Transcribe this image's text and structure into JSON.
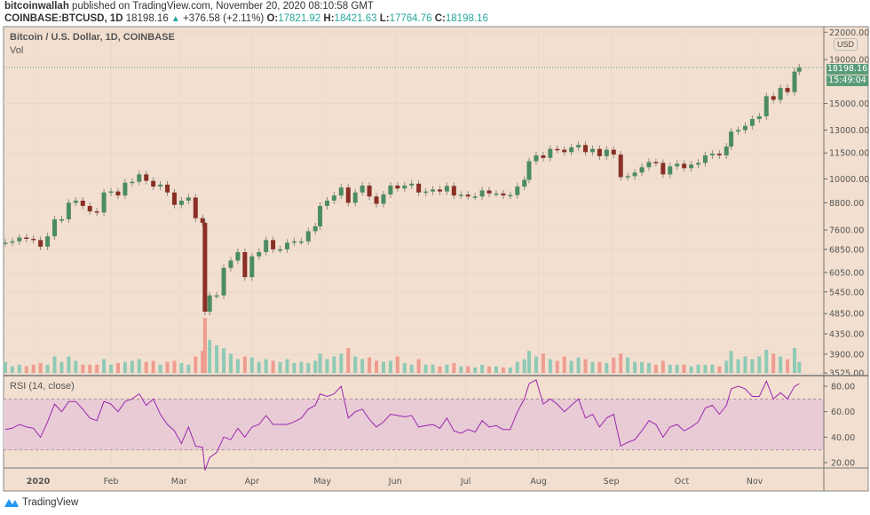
{
  "header": {
    "author": "bitcoinwallah",
    "published": "published on TradingView.com, November 20, 2020 08:10:58 GMT",
    "symbol": "COINBASE:BTCUSD, 1D",
    "last": "18198.16",
    "change": "+376.58 (+2.11%)",
    "o_label": "O:",
    "o": "17821.92",
    "h_label": "H:",
    "h": "18421.63",
    "l_label": "L:",
    "l": "17764.76",
    "c_label": "C:",
    "c": "18198.16"
  },
  "legend": {
    "title": "Bitcoin / U.S. Dollar, 1D, COINBASE",
    "vol": "Vol",
    "rsi": "RSI (14, close)"
  },
  "axis": {
    "currency": "USD",
    "last_price_label": "18198.16",
    "countdown": "15:49:04"
  },
  "footer": {
    "brand": "TradingView"
  },
  "colors": {
    "background": "#f2dfcf",
    "up": "#4c8c62",
    "down": "#8a2f25",
    "vol_up": "#8ecab6",
    "vol_down": "#ef9c90",
    "rsi": "#9c27b0",
    "rsi_band": "#e8cbd5",
    "label": "#5a9c78"
  },
  "chart_data": [
    {
      "type": "candlestick",
      "title": "Bitcoin / U.S. Dollar, 1D, COINBASE",
      "scale": "log",
      "grid": true,
      "ylim": [
        3525,
        22000
      ],
      "y_ticks": [
        "22000.00",
        "19000.00",
        "15000.00",
        "13000.00",
        "11500.00",
        "10000.00",
        "8800.00",
        "7600.00",
        "6850.00",
        "6050.00",
        "5450.00",
        "4850.00",
        "4350.00",
        "3900.00",
        "3525.00"
      ],
      "x_ticks": [
        [
          "2020",
          "2020-01-01"
        ],
        [
          "Feb",
          "2020-02-01"
        ],
        [
          "Mar",
          "2020-03-01"
        ],
        [
          "Apr",
          "2020-04-01"
        ],
        [
          "May",
          "2020-05-01"
        ],
        [
          "Jun",
          "2020-06-01"
        ],
        [
          "Jul",
          "2020-07-01"
        ],
        [
          "Aug",
          "2020-08-01"
        ],
        [
          "Sep",
          "2020-09-01"
        ],
        [
          "Oct",
          "2020-10-01"
        ],
        [
          "Nov",
          "2020-11-01"
        ]
      ],
      "columns": [
        "date",
        "close",
        "rsi",
        "volume_relative"
      ],
      "rows": [
        [
          "2019-12-18",
          7100,
          46,
          0.2
        ],
        [
          "2019-12-21",
          7150,
          47,
          0.12
        ],
        [
          "2019-12-24",
          7300,
          50,
          0.15
        ],
        [
          "2019-12-27",
          7250,
          48,
          0.12
        ],
        [
          "2019-12-30",
          7200,
          47,
          0.15
        ],
        [
          "2020-01-02",
          6950,
          40,
          0.18
        ],
        [
          "2020-01-05",
          7350,
          52,
          0.15
        ],
        [
          "2020-01-08",
          8050,
          66,
          0.3
        ],
        [
          "2020-01-11",
          8050,
          60,
          0.2
        ],
        [
          "2020-01-14",
          8800,
          68,
          0.3
        ],
        [
          "2020-01-17",
          8900,
          68,
          0.22
        ],
        [
          "2020-01-20",
          8650,
          62,
          0.15
        ],
        [
          "2020-01-23",
          8400,
          55,
          0.15
        ],
        [
          "2020-01-26",
          8350,
          53,
          0.15
        ],
        [
          "2020-01-29",
          9300,
          68,
          0.25
        ],
        [
          "2020-02-01",
          9350,
          66,
          0.15
        ],
        [
          "2020-02-04",
          9150,
          60,
          0.18
        ],
        [
          "2020-02-07",
          9800,
          68,
          0.2
        ],
        [
          "2020-02-10",
          9850,
          70,
          0.22
        ],
        [
          "2020-02-13",
          10250,
          74,
          0.25
        ],
        [
          "2020-02-16",
          9900,
          65,
          0.2
        ],
        [
          "2020-02-19",
          9600,
          70,
          0.22
        ],
        [
          "2020-02-22",
          9700,
          58,
          0.15
        ],
        [
          "2020-02-25",
          9300,
          50,
          0.2
        ],
        [
          "2020-02-28",
          8700,
          45,
          0.22
        ],
        [
          "2020-03-02",
          8900,
          35,
          0.18
        ],
        [
          "2020-03-05",
          9050,
          48,
          0.15
        ],
        [
          "2020-03-08",
          8100,
          33,
          0.3
        ],
        [
          "2020-03-11",
          7900,
          32,
          0.4
        ],
        [
          "2020-03-12",
          4900,
          14,
          1.0
        ],
        [
          "2020-03-14",
          5350,
          24,
          0.6
        ],
        [
          "2020-03-17",
          5350,
          28,
          0.5
        ],
        [
          "2020-03-20",
          6200,
          40,
          0.45
        ],
        [
          "2020-03-23",
          6450,
          38,
          0.35
        ],
        [
          "2020-03-26",
          6750,
          47,
          0.25
        ],
        [
          "2020-03-29",
          5900,
          40,
          0.3
        ],
        [
          "2020-04-01",
          6600,
          48,
          0.28
        ],
        [
          "2020-04-04",
          6750,
          50,
          0.2
        ],
        [
          "2020-04-07",
          7200,
          57,
          0.25
        ],
        [
          "2020-04-10",
          6850,
          50,
          0.22
        ],
        [
          "2020-04-13",
          6850,
          50,
          0.2
        ],
        [
          "2020-04-16",
          7100,
          50,
          0.25
        ],
        [
          "2020-04-19",
          7150,
          52,
          0.18
        ],
        [
          "2020-04-22",
          7150,
          55,
          0.2
        ],
        [
          "2020-04-25",
          7550,
          62,
          0.18
        ],
        [
          "2020-04-28",
          7750,
          65,
          0.22
        ],
        [
          "2020-04-30",
          8650,
          74,
          0.35
        ],
        [
          "2020-05-03",
          8900,
          72,
          0.25
        ],
        [
          "2020-05-06",
          9150,
          74,
          0.3
        ],
        [
          "2020-05-09",
          9550,
          80,
          0.35
        ],
        [
          "2020-05-12",
          8800,
          55,
          0.45
        ],
        [
          "2020-05-15",
          9300,
          60,
          0.3
        ],
        [
          "2020-05-18",
          9650,
          62,
          0.25
        ],
        [
          "2020-05-21",
          9100,
          54,
          0.28
        ],
        [
          "2020-05-24",
          8750,
          48,
          0.22
        ],
        [
          "2020-05-27",
          9200,
          52,
          0.2
        ],
        [
          "2020-05-30",
          9650,
          58,
          0.22
        ],
        [
          "2020-06-02",
          9500,
          57,
          0.3
        ],
        [
          "2020-06-05",
          9650,
          56,
          0.18
        ],
        [
          "2020-06-08",
          9750,
          57,
          0.15
        ],
        [
          "2020-06-11",
          9300,
          48,
          0.25
        ],
        [
          "2020-06-14",
          9350,
          49,
          0.15
        ],
        [
          "2020-06-17",
          9450,
          50,
          0.15
        ],
        [
          "2020-06-20",
          9350,
          47,
          0.12
        ],
        [
          "2020-06-23",
          9630,
          55,
          0.15
        ],
        [
          "2020-06-26",
          9150,
          45,
          0.18
        ],
        [
          "2020-06-29",
          9190,
          43,
          0.12
        ],
        [
          "2020-07-02",
          9100,
          46,
          0.12
        ],
        [
          "2020-07-05",
          9100,
          44,
          0.1
        ],
        [
          "2020-07-08",
          9400,
          53,
          0.15
        ],
        [
          "2020-07-11",
          9250,
          48,
          0.12
        ],
        [
          "2020-07-14",
          9250,
          49,
          0.12
        ],
        [
          "2020-07-17",
          9150,
          46,
          0.1
        ],
        [
          "2020-07-20",
          9170,
          46,
          0.1
        ],
        [
          "2020-07-23",
          9600,
          60,
          0.2
        ],
        [
          "2020-07-26",
          9950,
          70,
          0.25
        ],
        [
          "2020-07-28",
          11000,
          82,
          0.4
        ],
        [
          "2020-07-31",
          11350,
          85,
          0.3
        ],
        [
          "2020-08-03",
          11200,
          66,
          0.35
        ],
        [
          "2020-08-06",
          11750,
          70,
          0.25
        ],
        [
          "2020-08-09",
          11700,
          66,
          0.22
        ],
        [
          "2020-08-12",
          11550,
          60,
          0.3
        ],
        [
          "2020-08-15",
          11850,
          65,
          0.22
        ],
        [
          "2020-08-18",
          12000,
          70,
          0.28
        ],
        [
          "2020-08-21",
          11550,
          55,
          0.25
        ],
        [
          "2020-08-24",
          11750,
          58,
          0.2
        ],
        [
          "2020-08-27",
          11300,
          48,
          0.2
        ],
        [
          "2020-08-30",
          11700,
          55,
          0.18
        ],
        [
          "2020-09-02",
          11400,
          58,
          0.28
        ],
        [
          "2020-09-05",
          10100,
          33,
          0.35
        ],
        [
          "2020-09-08",
          10150,
          36,
          0.28
        ],
        [
          "2020-09-11",
          10350,
          38,
          0.2
        ],
        [
          "2020-09-14",
          10650,
          45,
          0.2
        ],
        [
          "2020-09-17",
          10950,
          53,
          0.18
        ],
        [
          "2020-09-20",
          10900,
          50,
          0.15
        ],
        [
          "2020-09-23",
          10250,
          40,
          0.22
        ],
        [
          "2020-09-26",
          10700,
          48,
          0.15
        ],
        [
          "2020-09-29",
          10850,
          50,
          0.15
        ],
        [
          "2020-10-02",
          10600,
          45,
          0.15
        ],
        [
          "2020-10-05",
          10800,
          48,
          0.12
        ],
        [
          "2020-10-08",
          10900,
          52,
          0.15
        ],
        [
          "2020-10-11",
          11350,
          63,
          0.15
        ],
        [
          "2020-10-14",
          11450,
          65,
          0.15
        ],
        [
          "2020-10-17",
          11350,
          58,
          0.12
        ],
        [
          "2020-10-20",
          11900,
          65,
          0.22
        ],
        [
          "2020-10-22",
          12900,
          78,
          0.4
        ],
        [
          "2020-10-25",
          13000,
          80,
          0.25
        ],
        [
          "2020-10-28",
          13300,
          78,
          0.3
        ],
        [
          "2020-10-31",
          13800,
          72,
          0.25
        ],
        [
          "2020-11-03",
          14000,
          72,
          0.3
        ],
        [
          "2020-11-06",
          15600,
          84,
          0.42
        ],
        [
          "2020-11-09",
          15300,
          70,
          0.35
        ],
        [
          "2020-11-12",
          16300,
          75,
          0.3
        ],
        [
          "2020-11-15",
          15950,
          70,
          0.25
        ],
        [
          "2020-11-18",
          17800,
          80,
          0.45
        ],
        [
          "2020-11-20",
          18198.16,
          82,
          0.2
        ]
      ]
    },
    {
      "type": "line",
      "title": "RSI (14, close)",
      "ylim": [
        10,
        90
      ],
      "y_ticks": [
        "80.00",
        "60.00",
        "40.00",
        "20.00"
      ],
      "bands": [
        30,
        70
      ]
    }
  ]
}
